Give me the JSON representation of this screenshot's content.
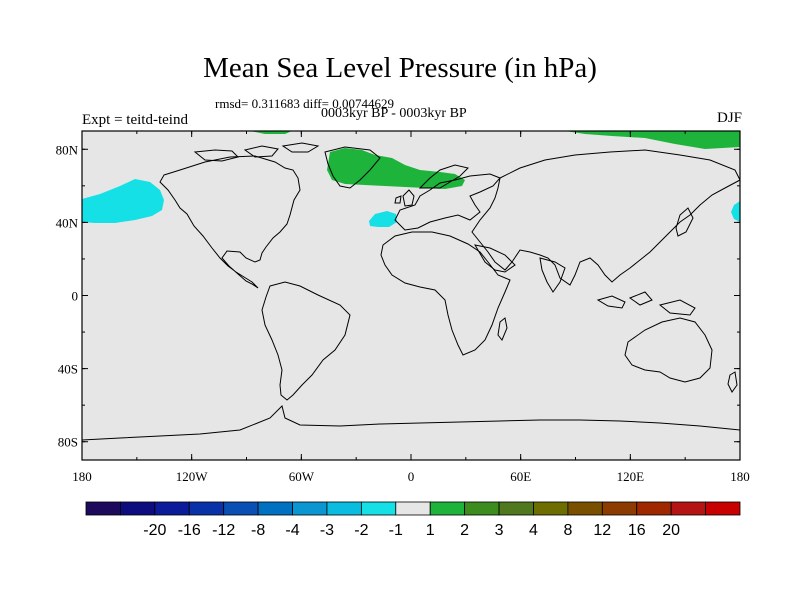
{
  "title": "Mean Sea Level Pressure (in hPa)",
  "stats": "rmsd= 0.311683 diff= 0.00744629",
  "periods": "0003kyr BP - 0003kyr BP",
  "experiment": "Expt = teitd-teind",
  "season": "DJF",
  "lat_ticks": [
    "80N",
    "40N",
    "0",
    "40S",
    "80S"
  ],
  "lon_ticks": [
    "180",
    "120W",
    "60W",
    "0",
    "60E",
    "120E",
    "180"
  ],
  "colorbar": {
    "colors": [
      "#1e0a5c",
      "#0d0d80",
      "#0c1b9a",
      "#0a32a8",
      "#0a4fb4",
      "#0070c0",
      "#0a96d0",
      "#0abde0",
      "#14e0e6",
      "#e6e6e6",
      "#1eb43c",
      "#3c8c1e",
      "#50781e",
      "#6e6e00",
      "#785000",
      "#8c3c00",
      "#a02800",
      "#b41414",
      "#c80000"
    ],
    "labels": [
      "-20",
      "-16",
      "-12",
      "-8",
      "-4",
      "-3",
      "-2",
      "-1",
      "1",
      "2",
      "3",
      "4",
      "8",
      "12",
      "16",
      "20"
    ]
  },
  "map_colors": {
    "background": "#e6e6e6",
    "positive": "#1eb43c",
    "negative": "#14e0e6",
    "coast": "#000000"
  }
}
